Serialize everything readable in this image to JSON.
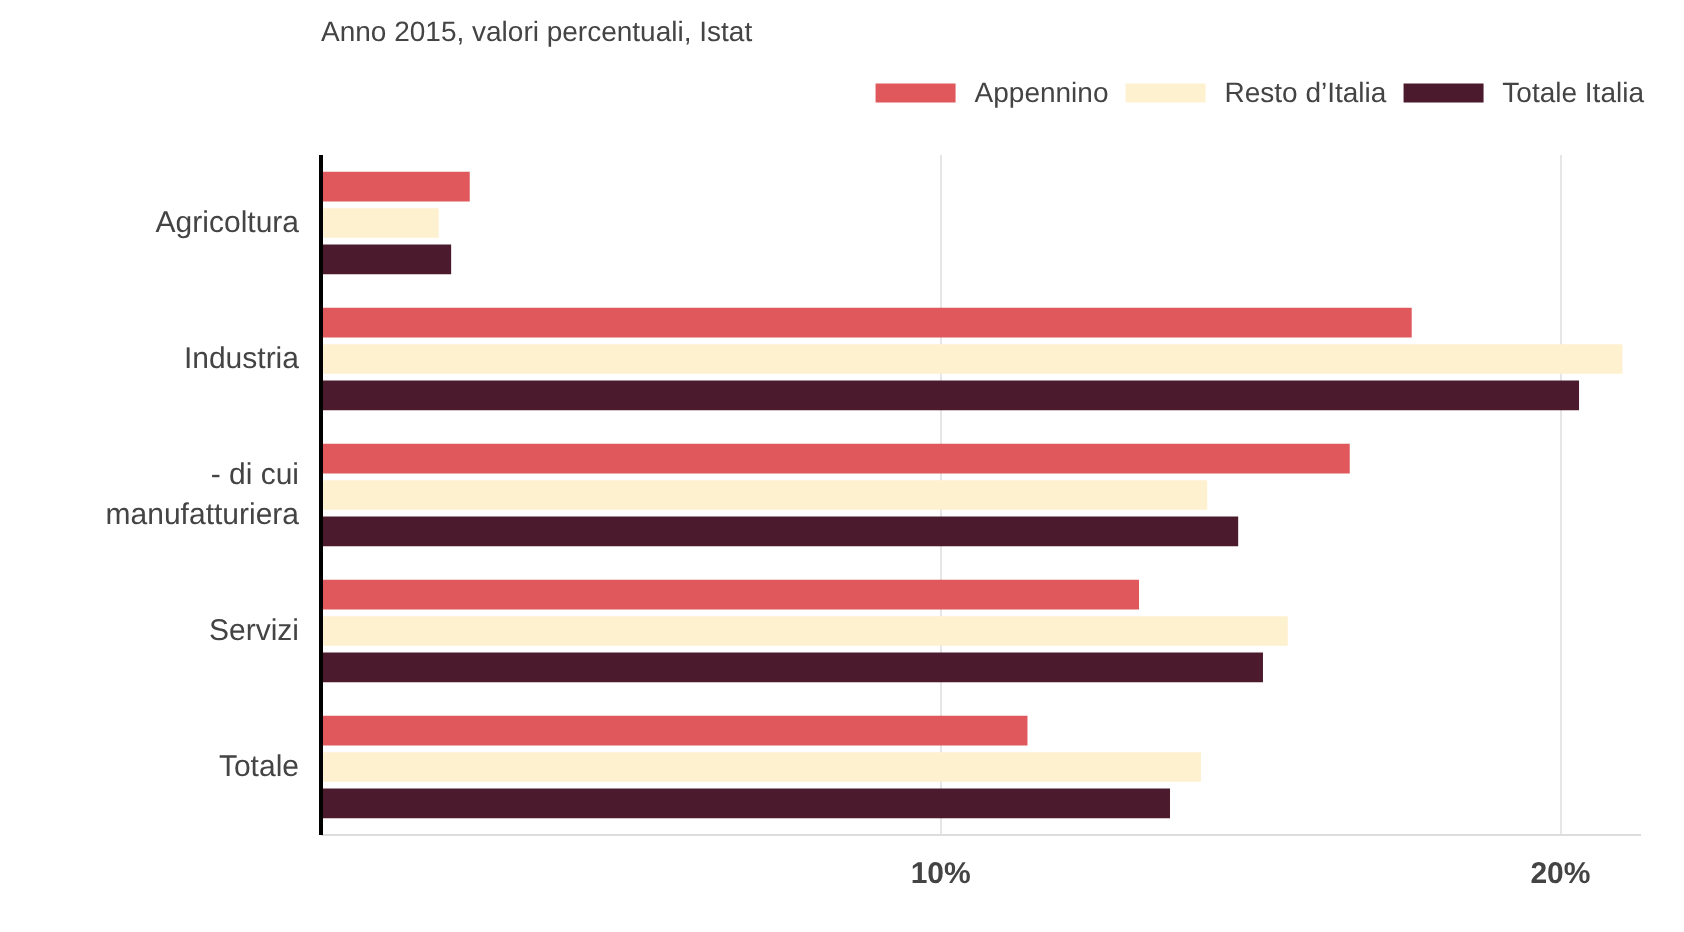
{
  "chart_data": {
    "type": "bar",
    "orientation": "horizontal",
    "subtitle": "Anno 2015, valori percentuali, Istat",
    "categories": [
      "Agricoltura",
      "Industria",
      "- di cui\nmanufatturiera",
      "Servizi",
      "Totale"
    ],
    "series": [
      {
        "name": "Appennino",
        "color": "#e0585c",
        "values": [
          2.4,
          17.6,
          16.6,
          13.2,
          11.4
        ]
      },
      {
        "name": "Resto d’Italia",
        "color": "#fdf1cf",
        "values": [
          1.9,
          21.0,
          14.3,
          15.6,
          14.2
        ]
      },
      {
        "name": "Totale Italia",
        "color": "#4b1a2d",
        "values": [
          2.1,
          20.3,
          14.8,
          15.2,
          13.7
        ]
      }
    ],
    "xlim": [
      0,
      21.3
    ],
    "xticks": [
      {
        "value": 10,
        "label": "10%"
      },
      {
        "value": 20,
        "label": "20%"
      }
    ],
    "grid": "x",
    "legend": "top right"
  }
}
